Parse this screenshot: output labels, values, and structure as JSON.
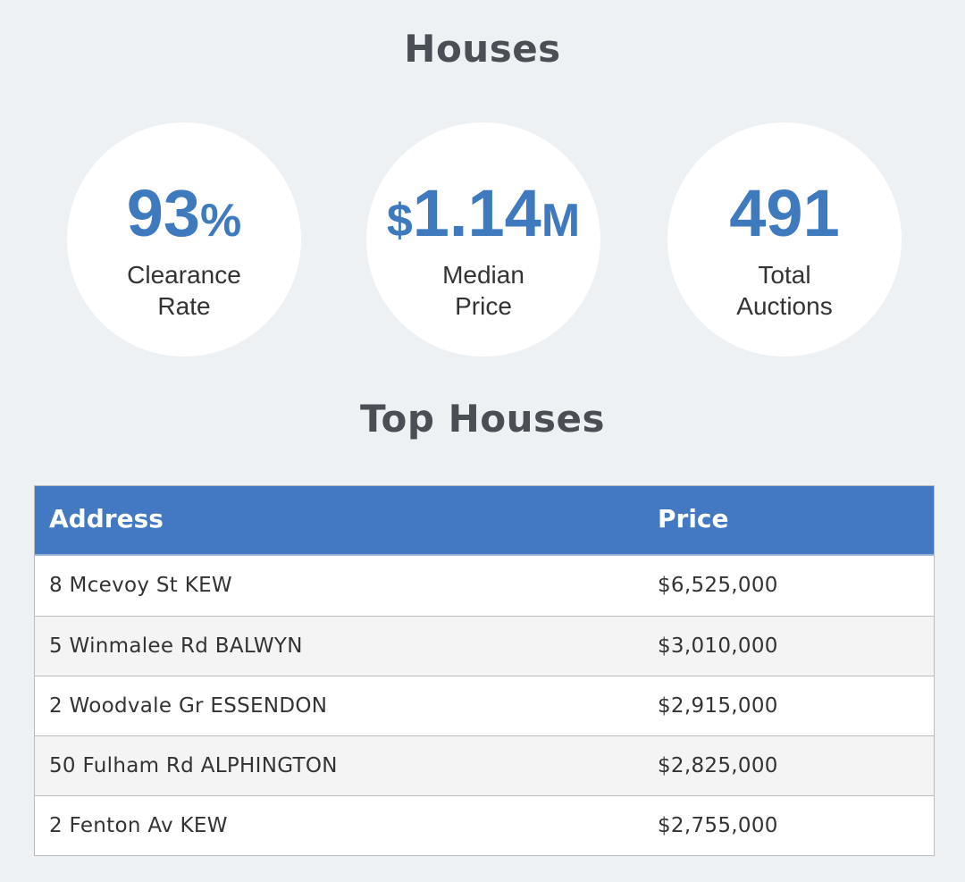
{
  "page_title": "Houses",
  "stats": [
    {
      "value_prefix": "",
      "value_main": "93",
      "value_suffix": "%",
      "label_line1": "Clearance",
      "label_line2": "Rate"
    },
    {
      "value_prefix": "$",
      "value_main": "1.14",
      "value_suffix": "M",
      "label_line1": "Median",
      "label_line2": "Price"
    },
    {
      "value_prefix": "",
      "value_main": "491",
      "value_suffix": "",
      "label_line1": "Total",
      "label_line2": "Auctions"
    }
  ],
  "top_houses": {
    "title": "Top Houses",
    "columns": {
      "address": "Address",
      "price": "Price"
    },
    "rows": [
      {
        "address": "8 Mcevoy St KEW",
        "price": "$6,525,000"
      },
      {
        "address": "5 Winmalee Rd BALWYN",
        "price": "$3,010,000"
      },
      {
        "address": "2 Woodvale Gr ESSENDON",
        "price": "$2,915,000"
      },
      {
        "address": "50 Fulham Rd ALPHINGTON",
        "price": "$2,825,000"
      },
      {
        "address": "2 Fenton Av KEW",
        "price": "$2,755,000"
      }
    ]
  },
  "colors": {
    "background": "#edf1f4",
    "accent": "#4279c2",
    "stat_value": "#3f7abf",
    "heading": "#4a4f55"
  }
}
